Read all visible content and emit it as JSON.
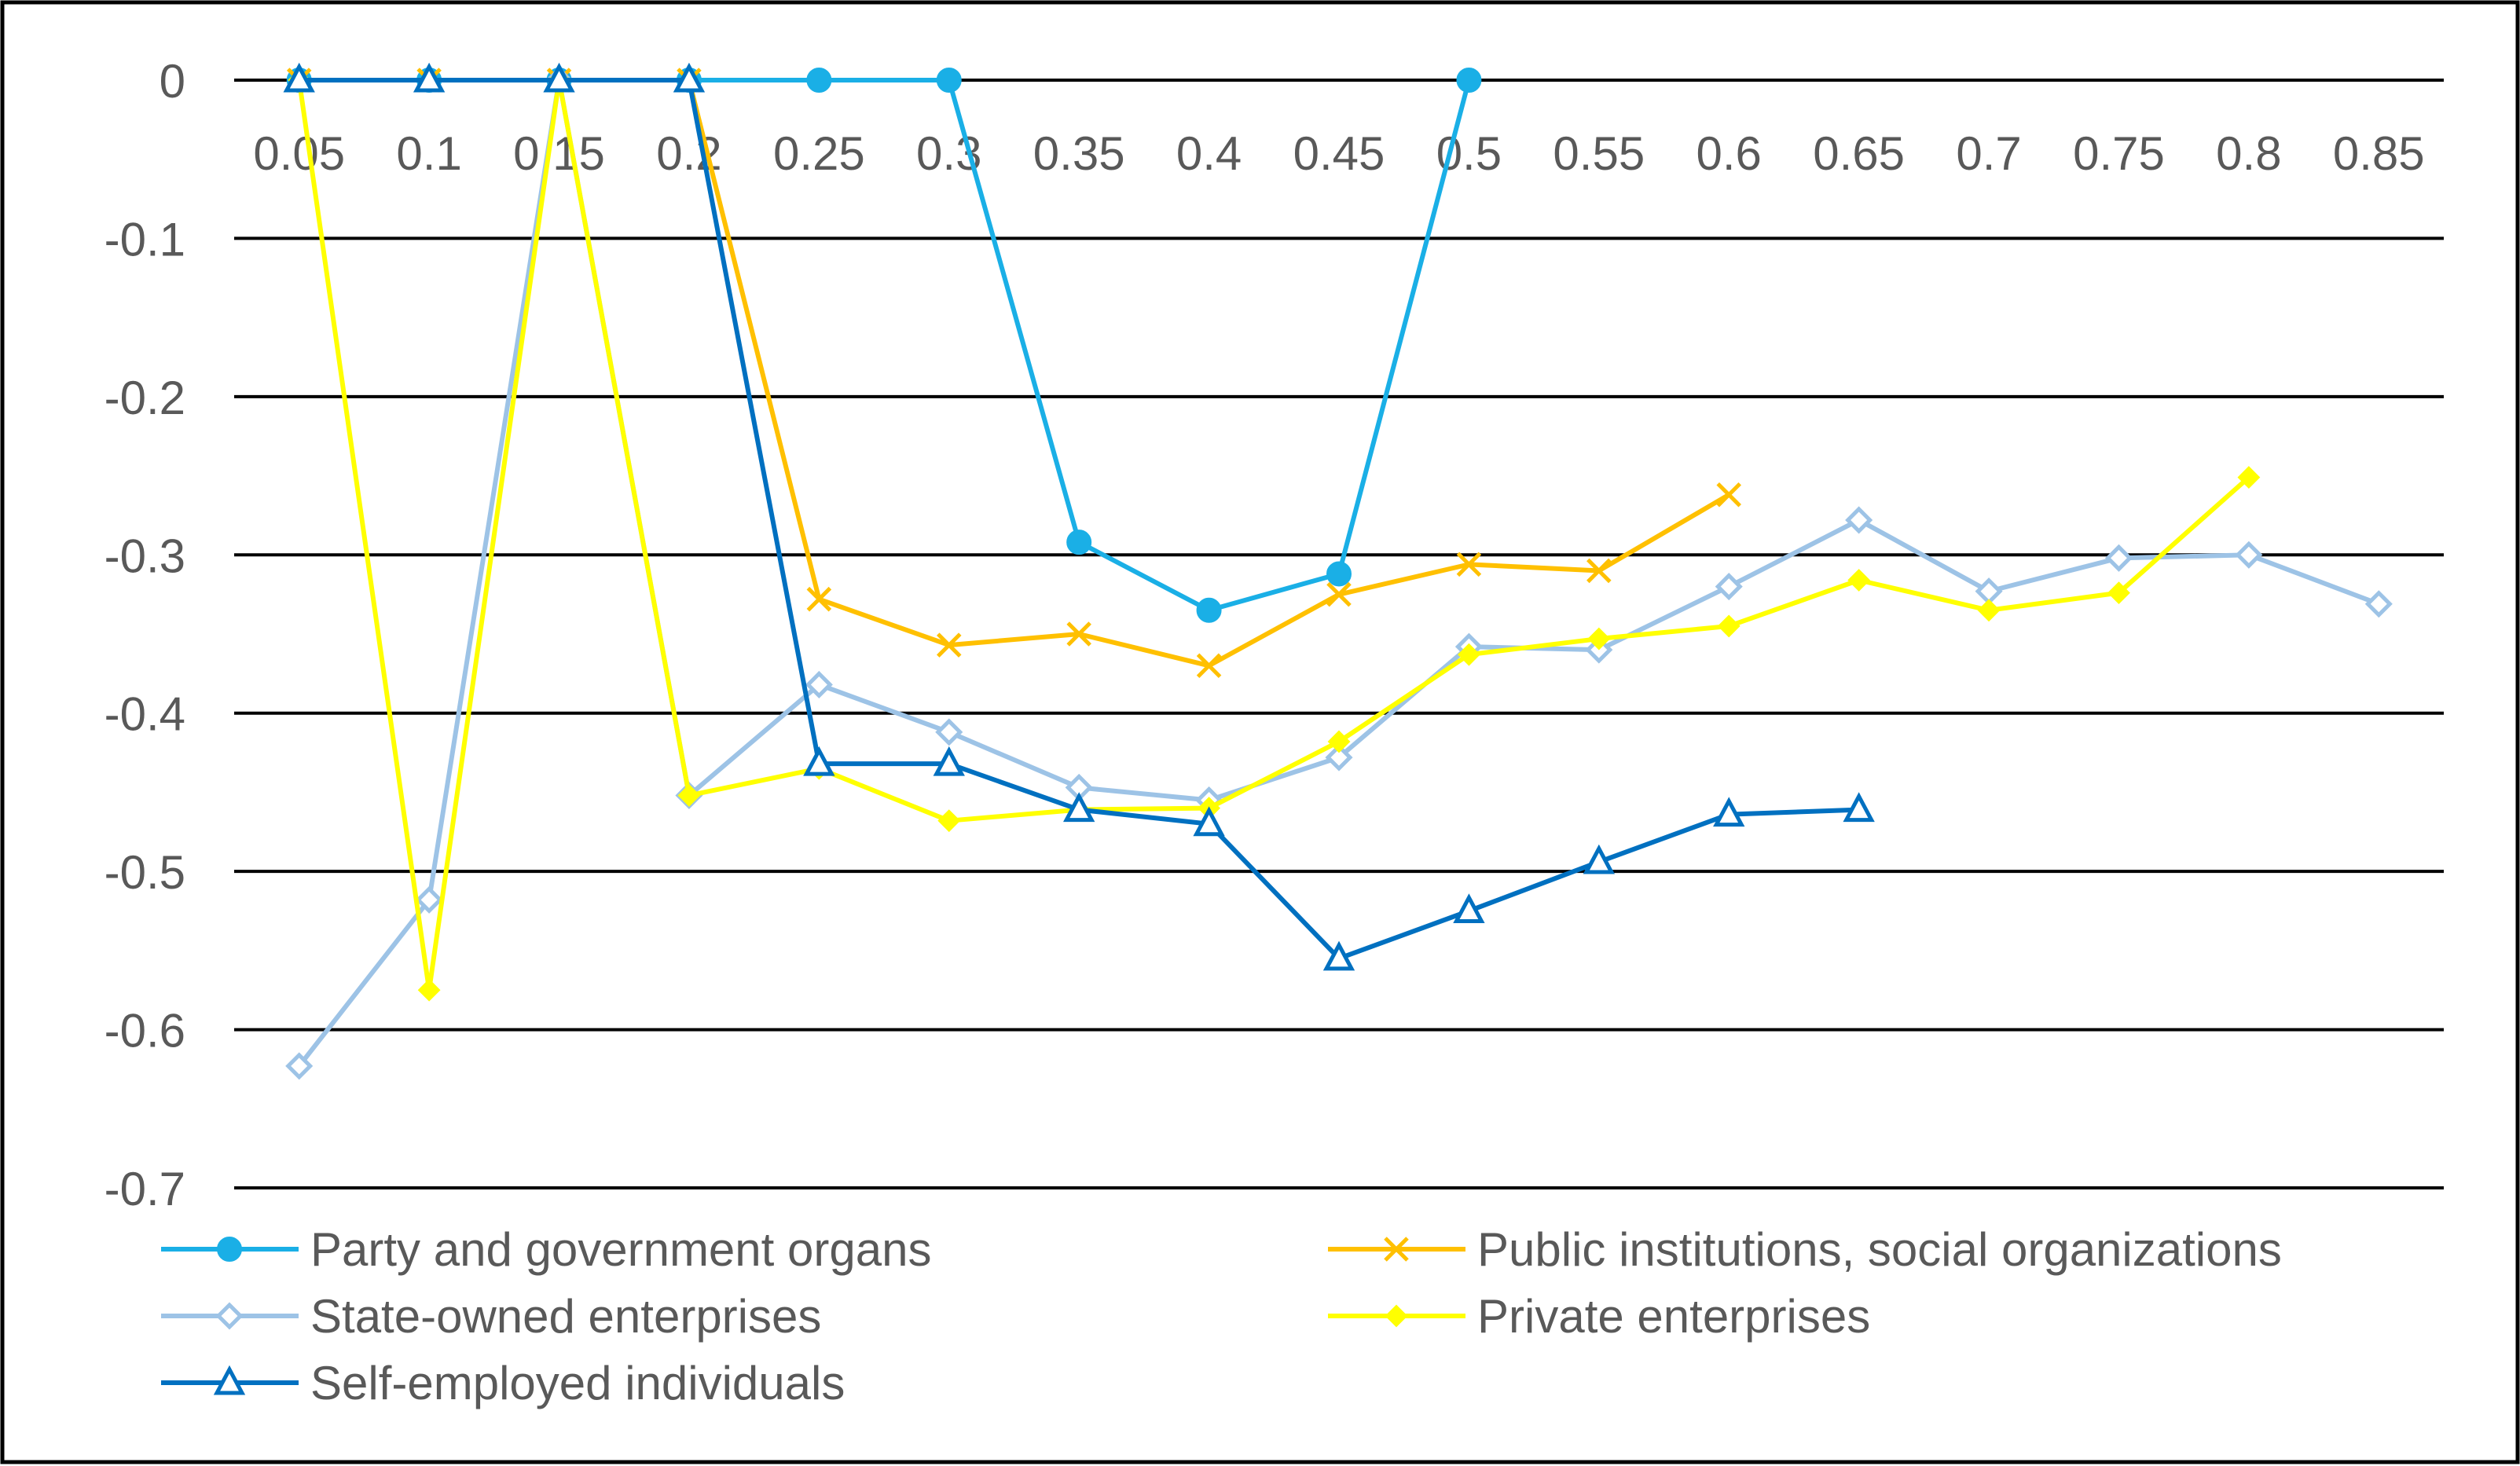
{
  "chart_data": {
    "type": "line",
    "title": "",
    "xlabel": "",
    "ylabel": "",
    "categories": [
      "0.05",
      "0.1",
      "0.15",
      "0.2",
      "0.25",
      "0.3",
      "0.35",
      "0.4",
      "0.45",
      "0.5",
      "0.55",
      "0.6",
      "0.65",
      "0.7",
      "0.75",
      "0.8",
      "0.85"
    ],
    "y_ticks": [
      "0",
      "-0.1",
      "-0.2",
      "-0.3",
      "-0.4",
      "-0.5",
      "-0.6",
      "-0.7"
    ],
    "ylim": [
      -0.7,
      0
    ],
    "grid": true,
    "legend_position": "bottom",
    "series": [
      {
        "name": "Party and government organs",
        "color": "#1aafe6",
        "marker": "circle",
        "values": [
          0,
          0,
          0,
          0,
          0,
          0,
          -0.292,
          -0.335,
          -0.312,
          0,
          null,
          null,
          null,
          null,
          null,
          null,
          null
        ]
      },
      {
        "name": "Public institutions, social organizations",
        "color": "#ffc000",
        "marker": "x",
        "values": [
          0,
          0,
          0,
          0,
          -0.328,
          -0.357,
          -0.35,
          -0.37,
          -0.325,
          -0.306,
          -0.31,
          -0.262,
          null,
          null,
          null,
          null,
          null
        ]
      },
      {
        "name": "State-owned enterprises",
        "color": "#9dc3e6",
        "marker": "diamond-open",
        "values": [
          -0.623,
          -0.518,
          0,
          -0.452,
          -0.382,
          -0.412,
          -0.447,
          -0.455,
          -0.428,
          -0.358,
          -0.36,
          -0.32,
          -0.278,
          -0.323,
          -0.302,
          -0.3,
          -0.331
        ]
      },
      {
        "name": "Private enterprises",
        "color": "#ffff00",
        "marker": "diamond",
        "values": [
          0,
          -0.575,
          0,
          -0.452,
          -0.435,
          -0.468,
          -0.461,
          -0.46,
          -0.418,
          -0.363,
          -0.353,
          -0.345,
          -0.316,
          -0.335,
          -0.324,
          -0.251,
          null
        ]
      },
      {
        "name": "Self-employed individuals",
        "color": "#0070c0",
        "marker": "triangle",
        "values": [
          0,
          0,
          0,
          0,
          -0.432,
          -0.432,
          -0.461,
          -0.47,
          -0.555,
          -0.525,
          -0.494,
          -0.464,
          -0.461,
          null,
          null,
          null,
          null
        ]
      }
    ]
  }
}
